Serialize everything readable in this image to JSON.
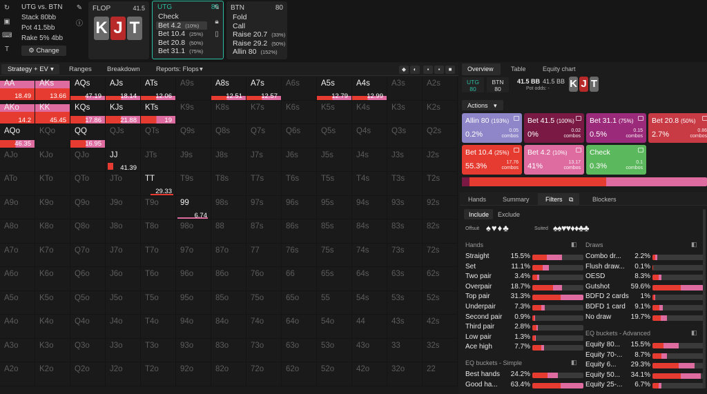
{
  "top": {
    "matchup": "UTG vs. BTN",
    "stack_label": "Stack 80bb",
    "pot_label": "Pot 41.5bb",
    "rake_label": "Rake 5% 4bb",
    "change_label": "Change",
    "flop_label": "FLOP",
    "flop_value": "41.5",
    "board": [
      "K",
      "J",
      "T"
    ],
    "utg_panel": {
      "name": "UTG",
      "value": "80",
      "actions": [
        {
          "label": "Check",
          "pct": ""
        },
        {
          "label": "Bet 4.2",
          "pct": "(10%)"
        },
        {
          "label": "Bet 10.4",
          "pct": "(25%)"
        },
        {
          "label": "Bet 20.8",
          "pct": "(50%)"
        },
        {
          "label": "Bet 31.1",
          "pct": "(75%)"
        }
      ]
    },
    "btn_panel": {
      "name": "BTN",
      "value": "80",
      "actions": [
        {
          "label": "Fold",
          "pct": ""
        },
        {
          "label": "Call",
          "pct": ""
        },
        {
          "label": "Raise 20.7",
          "pct": "(33%)"
        },
        {
          "label": "Raise 29.2",
          "pct": "(50%)"
        },
        {
          "label": "Allin 80",
          "pct": "(152%)"
        }
      ]
    }
  },
  "toolbar": {
    "strategy": "Strategy + EV",
    "ranges": "Ranges",
    "breakdown": "Breakdown",
    "reports": "Reports: Flops"
  },
  "grid_values": {
    "AA": "18.49",
    "AKs": "13.66",
    "AQs": "47.19",
    "AJs": "18.14",
    "ATs": "12.06",
    "A8s": "12.51",
    "A7s": "12.57",
    "A5s": "12.79",
    "A4s": "12.99",
    "AKo": "14.2",
    "KK": "45.45",
    "KQs": "17.86",
    "KJs": "21.88",
    "KTs": "19",
    "AQo": "46.35",
    "QQ": "16.95",
    "JJ": "41.39",
    "TT": "29.33",
    "99": "6.74"
  },
  "right": {
    "tabs": [
      "Overview",
      "Table",
      "Equity chart"
    ],
    "pos1": {
      "name": "UTG",
      "value": "80"
    },
    "pos2": {
      "name": "BTN",
      "value": "80"
    },
    "pot_bb": "41.5 BB",
    "pot_bb2": "41.5 BB",
    "pot_odds": "Pot odds: -",
    "actions_label": "Actions",
    "tiles": [
      {
        "name": "Allin 80",
        "pct_note": "(193%)",
        "freq": "0.2%",
        "combos": "0.05",
        "color": "#8e86c8"
      },
      {
        "name": "Bet 41.5",
        "pct_note": "(100%)",
        "freq": "0%",
        "combos": "0.02",
        "color": "#7a1a44"
      },
      {
        "name": "Bet 31.1",
        "pct_note": "(75%)",
        "freq": "0.5%",
        "combos": "0.15",
        "color": "#9c2a7a"
      },
      {
        "name": "Bet 20.8",
        "pct_note": "(50%)",
        "freq": "2.7%",
        "combos": "0.86",
        "color": "#c83a44"
      },
      {
        "name": "Bet 10.4",
        "pct_note": "(25%)",
        "freq": "55.3%",
        "combos": "17.76",
        "color": "#e53b30"
      },
      {
        "name": "Bet 4.2",
        "pct_note": "(10%)",
        "freq": "41%",
        "combos": "13.17",
        "color": "#de6ca0"
      },
      {
        "name": "Check",
        "pct_note": "",
        "freq": "0.3%",
        "combos": "0.1",
        "color": "#5cb85c"
      }
    ],
    "combos_word": "combos",
    "subtabs": [
      "Hands",
      "Summary",
      "Filters",
      "Blockers"
    ],
    "include": "Include",
    "exclude": "Exclude",
    "offsuit": "Offsuit",
    "suited": "Suited",
    "hands_title": "Hands",
    "hands": [
      {
        "label": "Straight",
        "value": "15.5%",
        "r": 0.28,
        "p": 0.3
      },
      {
        "label": "Set",
        "value": "11.1%",
        "r": 0.2,
        "p": 0.12
      },
      {
        "label": "Two pair",
        "value": "3.4%",
        "r": 0.1,
        "p": 0.04
      },
      {
        "label": "Overpair",
        "value": "18.7%",
        "r": 0.4,
        "p": 0.18
      },
      {
        "label": "Top pair",
        "value": "31.3%",
        "r": 0.55,
        "p": 0.45
      },
      {
        "label": "Underpair",
        "value": "7.3%",
        "r": 0.18,
        "p": 0.06
      },
      {
        "label": "Second pair",
        "value": "0.9%",
        "r": 0.04,
        "p": 0.02
      },
      {
        "label": "Third pair",
        "value": "2.8%",
        "r": 0.08,
        "p": 0.03
      },
      {
        "label": "Low pair",
        "value": "1.3%",
        "r": 0.05,
        "p": 0.02
      },
      {
        "label": "Ace high",
        "value": "7.7%",
        "r": 0.18,
        "p": 0.05
      }
    ],
    "eq_simple_title": "EQ buckets - Simple",
    "eq_simple": [
      {
        "label": "Best hands",
        "value": "24.2%",
        "r": 0.3,
        "p": 0.2
      },
      {
        "label": "Good ha...",
        "value": "63.4%",
        "r": 0.55,
        "p": 0.45
      }
    ],
    "draws_title": "Draws",
    "draws": [
      {
        "label": "Combo dr...",
        "value": "2.2%",
        "r": 0.06,
        "p": 0.03
      },
      {
        "label": "Flush draw...",
        "value": "0.1%",
        "r": 0.02,
        "p": 0.0
      },
      {
        "label": "OESD",
        "value": "8.3%",
        "r": 0.12,
        "p": 0.06
      },
      {
        "label": "Gutshot",
        "value": "59.6%",
        "r": 0.55,
        "p": 0.45
      },
      {
        "label": "BDFD 2 cards",
        "value": "1%",
        "r": 0.04,
        "p": 0.02
      },
      {
        "label": "BDFD 1 card",
        "value": "9.1%",
        "r": 0.14,
        "p": 0.06
      },
      {
        "label": "No draw",
        "value": "19.7%",
        "r": 0.16,
        "p": 0.12
      }
    ],
    "eq_adv_title": "EQ buckets - Advanced",
    "eq_adv": [
      {
        "label": "Equity 80...",
        "value": "15.5%",
        "r": 0.22,
        "p": 0.3
      },
      {
        "label": "Equity 70-...",
        "value": "8.7%",
        "r": 0.18,
        "p": 0.1
      },
      {
        "label": "Equity 6...",
        "value": "29.3%",
        "r": 0.52,
        "p": 0.3
      },
      {
        "label": "Equity 50...",
        "value": "34.1%",
        "r": 0.55,
        "p": 0.4
      },
      {
        "label": "Equity 25-...",
        "value": "6.7%",
        "r": 0.12,
        "p": 0.06
      }
    ]
  },
  "colors": {
    "red": "#e53b30",
    "pink": "#de6ca0",
    "bg": "#1c1c1c",
    "teal": "#2bbfa4"
  }
}
